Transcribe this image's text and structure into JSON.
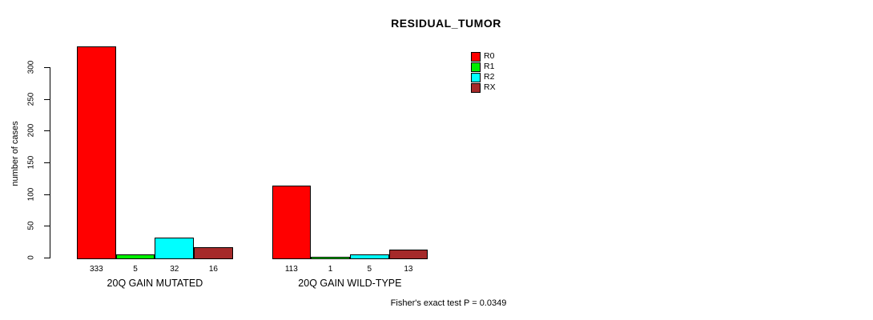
{
  "page": {
    "background": "#FFFFFF",
    "text_color": "#000000"
  },
  "chart_data": {
    "type": "bar",
    "title": "RESIDUAL_TUMOR",
    "xlabel": "",
    "ylabel": "number of cases",
    "ylim": [
      0,
      300
    ],
    "yticks": [
      0,
      50,
      100,
      150,
      200,
      250,
      300
    ],
    "grid": false,
    "legend_position": "top-right",
    "categories": [
      "20Q GAIN MUTATED",
      "20Q GAIN WILD-TYPE"
    ],
    "series": [
      {
        "name": "R0",
        "color": "#FF0000",
        "values": [
          333,
          113
        ]
      },
      {
        "name": "R1",
        "color": "#00EE00",
        "values": [
          5,
          1
        ]
      },
      {
        "name": "R2",
        "color": "#00FFFF",
        "values": [
          32,
          5
        ]
      },
      {
        "name": "RX",
        "color": "#A52A2A",
        "values": [
          16,
          13
        ]
      }
    ],
    "bar_value_labels": [
      [
        333,
        5,
        32,
        16
      ],
      [
        113,
        1,
        5,
        13
      ]
    ],
    "annotation": "Fisher's exact test P = 0.0349"
  }
}
